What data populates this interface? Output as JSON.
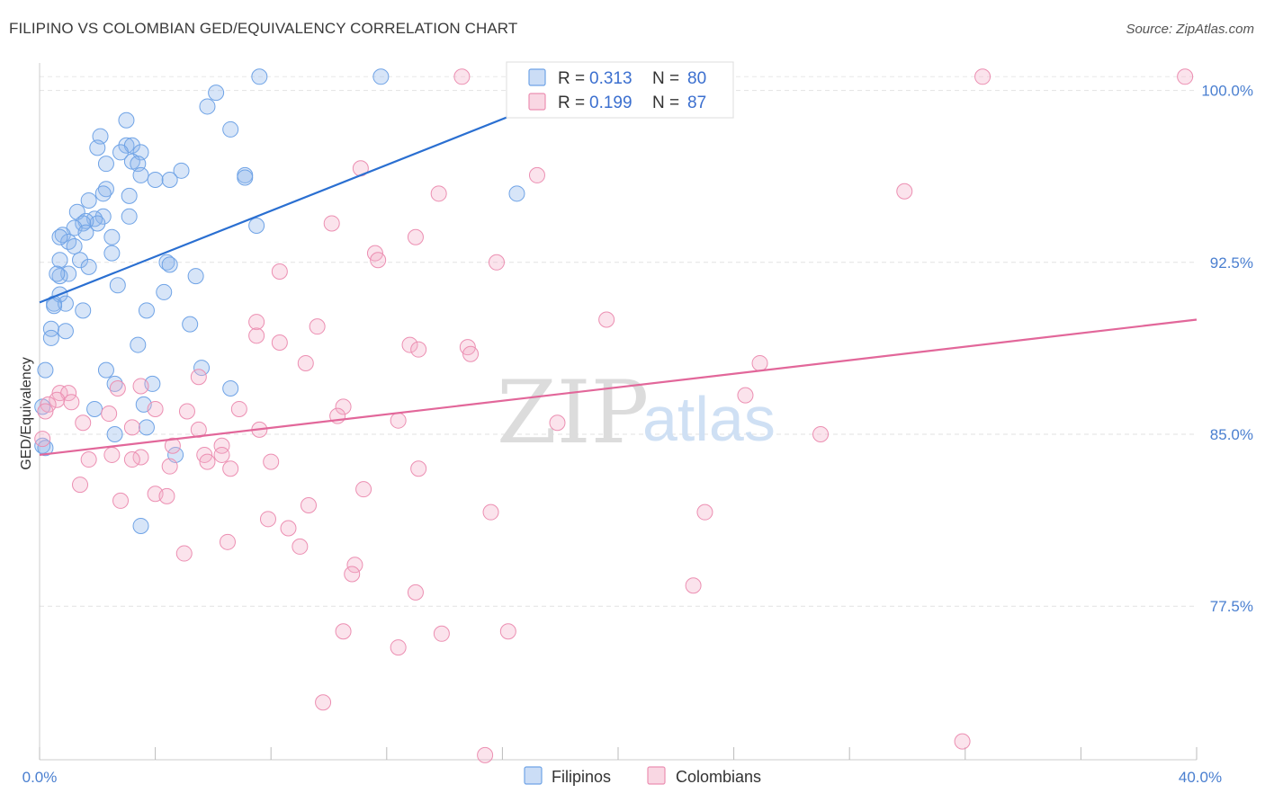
{
  "title": "FILIPINO VS COLOMBIAN GED/EQUIVALENCY CORRELATION CHART",
  "source": "Source: ZipAtlas.com",
  "chart_data": {
    "type": "scatter",
    "title": "FILIPINO VS COLOMBIAN GED/EQUIVALENCY CORRELATION CHART",
    "ylabel": "GED/Equivalency",
    "xlim": [
      0,
      40
    ],
    "ylim": [
      70.8,
      101.2
    ],
    "y_ticks": [
      {
        "value": 100.0,
        "label": "100.0%"
      },
      {
        "value": 92.5,
        "label": "92.5%"
      },
      {
        "value": 85.0,
        "label": "85.0%"
      },
      {
        "value": 77.5,
        "label": "77.5%"
      }
    ],
    "x_tick_values": [
      0,
      4,
      8,
      12,
      16,
      20,
      24,
      28,
      32,
      36,
      40
    ],
    "x_labels": [
      {
        "value": 0,
        "label": "0.0%"
      },
      {
        "value": 40,
        "label": "40.0%"
      }
    ],
    "watermark": {
      "part1": "ZIP",
      "part2": "atlas"
    },
    "legend": [
      {
        "r_label": "R =",
        "r_value": "0.313",
        "n_label": "N =",
        "n_value": "80"
      },
      {
        "r_label": "R =",
        "r_value": "0.199",
        "n_label": "N =",
        "n_value": "87"
      }
    ],
    "series": [
      {
        "name": "Filipinos",
        "color": "#6fa3e6",
        "fill": "rgba(140,180,235,0.35)",
        "line_color": "#2a6fd1",
        "trend": {
          "x0": 0,
          "y0": 90.75,
          "x1": 19.5,
          "y1": 100.5
        },
        "points": [
          [
            7.6,
            100.6
          ],
          [
            11.8,
            100.6
          ],
          [
            6.1,
            99.9
          ],
          [
            5.8,
            99.3
          ],
          [
            3.0,
            98.7
          ],
          [
            6.6,
            98.3
          ],
          [
            2.1,
            98.0
          ],
          [
            3.0,
            97.6
          ],
          [
            3.2,
            97.6
          ],
          [
            2.0,
            97.5
          ],
          [
            2.8,
            97.3
          ],
          [
            3.5,
            97.3
          ],
          [
            3.2,
            96.9
          ],
          [
            2.3,
            96.8
          ],
          [
            3.4,
            96.8
          ],
          [
            4.9,
            96.5
          ],
          [
            7.1,
            96.3
          ],
          [
            3.5,
            96.3
          ],
          [
            7.1,
            96.2
          ],
          [
            4.0,
            96.1
          ],
          [
            4.5,
            96.1
          ],
          [
            2.3,
            95.7
          ],
          [
            2.2,
            95.5
          ],
          [
            3.1,
            95.4
          ],
          [
            16.5,
            95.5
          ],
          [
            1.7,
            95.2
          ],
          [
            1.3,
            94.7
          ],
          [
            2.2,
            94.5
          ],
          [
            1.9,
            94.4
          ],
          [
            2.0,
            94.2
          ],
          [
            3.1,
            94.5
          ],
          [
            1.6,
            94.3
          ],
          [
            1.5,
            94.2
          ],
          [
            7.5,
            94.1
          ],
          [
            1.2,
            94.0
          ],
          [
            1.6,
            93.8
          ],
          [
            0.8,
            93.7
          ],
          [
            1.0,
            93.4
          ],
          [
            0.7,
            93.6
          ],
          [
            2.5,
            93.6
          ],
          [
            1.2,
            93.2
          ],
          [
            2.5,
            92.9
          ],
          [
            1.4,
            92.6
          ],
          [
            0.7,
            92.6
          ],
          [
            4.4,
            92.5
          ],
          [
            1.7,
            92.3
          ],
          [
            4.5,
            92.4
          ],
          [
            1.0,
            92.0
          ],
          [
            0.7,
            91.9
          ],
          [
            0.6,
            92.0
          ],
          [
            5.4,
            91.9
          ],
          [
            2.7,
            91.5
          ],
          [
            4.3,
            91.2
          ],
          [
            0.7,
            91.1
          ],
          [
            0.5,
            90.7
          ],
          [
            0.9,
            90.7
          ],
          [
            0.5,
            90.6
          ],
          [
            3.7,
            90.4
          ],
          [
            1.5,
            90.4
          ],
          [
            5.2,
            89.8
          ],
          [
            0.4,
            89.6
          ],
          [
            0.9,
            89.5
          ],
          [
            0.4,
            89.2
          ],
          [
            3.4,
            88.9
          ],
          [
            0.2,
            87.8
          ],
          [
            2.3,
            87.8
          ],
          [
            5.6,
            87.9
          ],
          [
            2.6,
            87.2
          ],
          [
            3.9,
            87.2
          ],
          [
            6.6,
            87.0
          ],
          [
            3.6,
            86.3
          ],
          [
            1.9,
            86.1
          ],
          [
            0.1,
            86.2
          ],
          [
            3.7,
            85.3
          ],
          [
            2.6,
            85.0
          ],
          [
            0.1,
            84.5
          ],
          [
            0.2,
            84.4
          ],
          [
            4.7,
            84.1
          ],
          [
            3.5,
            81.0
          ]
        ]
      },
      {
        "name": "Colombians",
        "color": "#ec8fb2",
        "fill": "rgba(244,175,200,0.35)",
        "line_color": "#e2679a",
        "trend": {
          "x0": 0,
          "y0": 84.1,
          "x1": 40,
          "y1": 90.0
        },
        "points": [
          [
            14.6,
            100.6
          ],
          [
            32.6,
            100.6
          ],
          [
            39.6,
            100.6
          ],
          [
            11.1,
            96.6
          ],
          [
            17.2,
            96.3
          ],
          [
            29.9,
            95.6
          ],
          [
            13.8,
            95.5
          ],
          [
            10.1,
            94.2
          ],
          [
            13.0,
            93.6
          ],
          [
            11.6,
            92.9
          ],
          [
            11.7,
            92.6
          ],
          [
            15.8,
            92.5
          ],
          [
            8.3,
            92.1
          ],
          [
            19.6,
            90.0
          ],
          [
            7.5,
            89.9
          ],
          [
            9.6,
            89.7
          ],
          [
            7.5,
            89.3
          ],
          [
            8.3,
            89.0
          ],
          [
            12.8,
            88.9
          ],
          [
            13.1,
            88.7
          ],
          [
            14.8,
            88.8
          ],
          [
            14.9,
            88.5
          ],
          [
            9.2,
            88.1
          ],
          [
            24.9,
            88.1
          ],
          [
            5.5,
            87.5
          ],
          [
            2.7,
            87.0
          ],
          [
            3.5,
            87.1
          ],
          [
            0.7,
            86.8
          ],
          [
            1.0,
            86.8
          ],
          [
            0.6,
            86.5
          ],
          [
            1.1,
            86.4
          ],
          [
            0.3,
            86.3
          ],
          [
            0.2,
            86.0
          ],
          [
            24.4,
            86.7
          ],
          [
            6.9,
            86.1
          ],
          [
            10.5,
            86.2
          ],
          [
            4.0,
            86.1
          ],
          [
            5.1,
            86.0
          ],
          [
            2.4,
            85.9
          ],
          [
            10.3,
            85.8
          ],
          [
            12.4,
            85.6
          ],
          [
            17.9,
            85.5
          ],
          [
            1.5,
            85.5
          ],
          [
            3.2,
            85.3
          ],
          [
            5.5,
            85.2
          ],
          [
            7.6,
            85.2
          ],
          [
            27.0,
            85.0
          ],
          [
            0.1,
            84.8
          ],
          [
            6.3,
            84.5
          ],
          [
            4.6,
            84.5
          ],
          [
            5.7,
            84.1
          ],
          [
            2.5,
            84.1
          ],
          [
            6.3,
            84.1
          ],
          [
            3.5,
            84.0
          ],
          [
            1.7,
            83.9
          ],
          [
            3.2,
            83.9
          ],
          [
            5.8,
            83.8
          ],
          [
            8.0,
            83.8
          ],
          [
            4.5,
            83.6
          ],
          [
            6.6,
            83.5
          ],
          [
            13.1,
            83.5
          ],
          [
            1.4,
            82.8
          ],
          [
            11.2,
            82.6
          ],
          [
            4.0,
            82.4
          ],
          [
            4.4,
            82.3
          ],
          [
            2.8,
            82.1
          ],
          [
            9.3,
            81.9
          ],
          [
            15.6,
            81.6
          ],
          [
            23.0,
            81.6
          ],
          [
            7.9,
            81.3
          ],
          [
            8.6,
            80.9
          ],
          [
            6.5,
            80.3
          ],
          [
            9.0,
            80.1
          ],
          [
            5.0,
            79.8
          ],
          [
            10.9,
            79.3
          ],
          [
            10.8,
            78.9
          ],
          [
            22.6,
            78.4
          ],
          [
            13.0,
            78.1
          ],
          [
            10.5,
            76.4
          ],
          [
            16.2,
            76.4
          ],
          [
            13.9,
            76.3
          ],
          [
            12.4,
            75.7
          ],
          [
            9.8,
            73.3
          ],
          [
            31.9,
            71.6
          ],
          [
            15.4,
            71.0
          ]
        ]
      }
    ]
  }
}
